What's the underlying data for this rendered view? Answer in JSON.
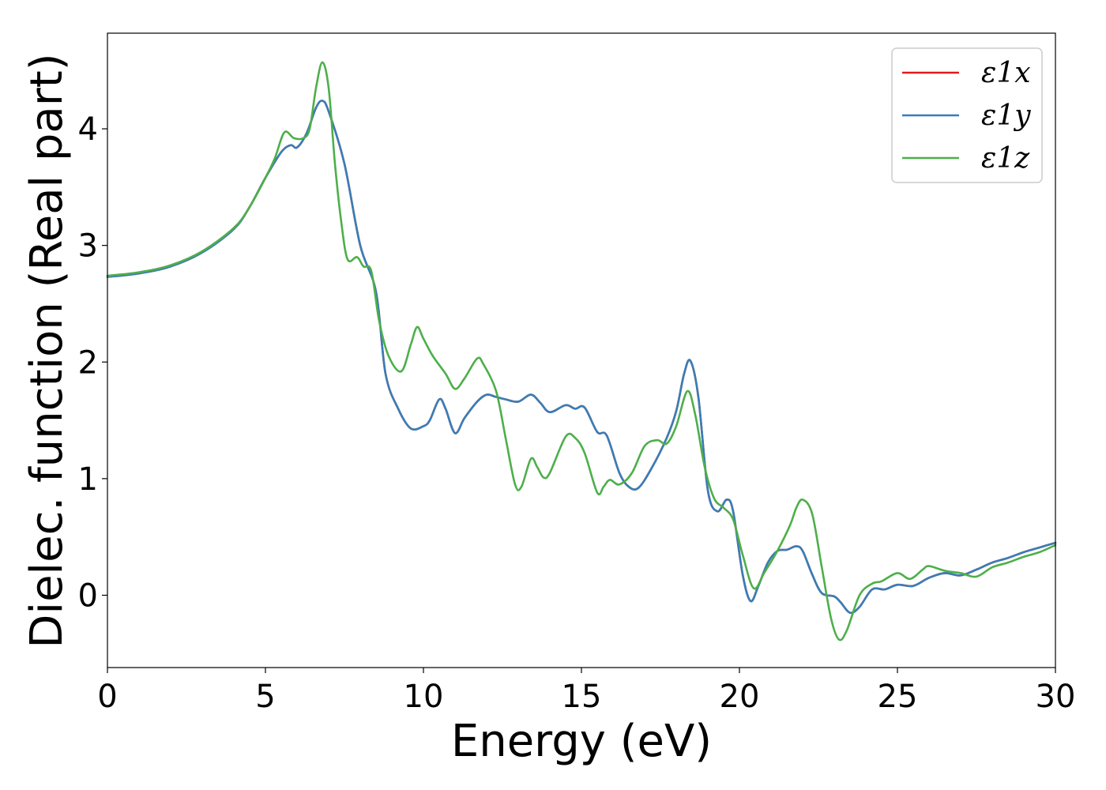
{
  "chart_data": {
    "type": "line",
    "title": "",
    "xlabel": "Energy (eV)",
    "ylabel": "Dielec. function (Real part)",
    "xlim": [
      0,
      30
    ],
    "ylim": [
      -0.62,
      4.82
    ],
    "xticks": [
      0,
      5,
      10,
      15,
      20,
      25,
      30
    ],
    "yticks": [
      0,
      1,
      2,
      3,
      4
    ],
    "grid": false,
    "legend_position": "top-right",
    "series": [
      {
        "name": "ε1x",
        "color": "#e41a1c",
        "points": [
          [
            0,
            2.73
          ],
          [
            1,
            2.76
          ],
          [
            2,
            2.82
          ],
          [
            3,
            2.94
          ],
          [
            4,
            3.14
          ],
          [
            4.5,
            3.33
          ],
          [
            5,
            3.58
          ],
          [
            5.5,
            3.8
          ],
          [
            5.8,
            3.86
          ],
          [
            6.0,
            3.84
          ],
          [
            6.3,
            3.96
          ],
          [
            6.6,
            4.18
          ],
          [
            6.8,
            4.24
          ],
          [
            7.0,
            4.15
          ],
          [
            7.5,
            3.7
          ],
          [
            8.0,
            3.0
          ],
          [
            8.5,
            2.6
          ],
          [
            8.8,
            1.9
          ],
          [
            9.2,
            1.6
          ],
          [
            9.6,
            1.43
          ],
          [
            10.0,
            1.45
          ],
          [
            10.2,
            1.5
          ],
          [
            10.5,
            1.68
          ],
          [
            10.7,
            1.6
          ],
          [
            11.0,
            1.39
          ],
          [
            11.3,
            1.52
          ],
          [
            11.7,
            1.66
          ],
          [
            12.0,
            1.72
          ],
          [
            12.3,
            1.7
          ],
          [
            12.6,
            1.68
          ],
          [
            13.0,
            1.66
          ],
          [
            13.4,
            1.72
          ],
          [
            13.7,
            1.65
          ],
          [
            14.0,
            1.57
          ],
          [
            14.5,
            1.63
          ],
          [
            14.8,
            1.6
          ],
          [
            15.1,
            1.61
          ],
          [
            15.5,
            1.4
          ],
          [
            15.8,
            1.37
          ],
          [
            16.2,
            1.05
          ],
          [
            16.5,
            0.93
          ],
          [
            16.8,
            0.92
          ],
          [
            17.2,
            1.08
          ],
          [
            17.7,
            1.35
          ],
          [
            18.0,
            1.58
          ],
          [
            18.25,
            1.9
          ],
          [
            18.45,
            2.01
          ],
          [
            18.7,
            1.7
          ],
          [
            19.0,
            0.9
          ],
          [
            19.3,
            0.72
          ],
          [
            19.6,
            0.82
          ],
          [
            19.8,
            0.72
          ],
          [
            20.1,
            0.18
          ],
          [
            20.35,
            -0.05
          ],
          [
            20.6,
            0.08
          ],
          [
            20.9,
            0.28
          ],
          [
            21.2,
            0.38
          ],
          [
            21.5,
            0.39
          ],
          [
            21.8,
            0.42
          ],
          [
            22.0,
            0.38
          ],
          [
            22.3,
            0.18
          ],
          [
            22.6,
            0.02
          ],
          [
            23.0,
            -0.01
          ],
          [
            23.2,
            -0.06
          ],
          [
            23.5,
            -0.15
          ],
          [
            23.8,
            -0.1
          ],
          [
            24.2,
            0.05
          ],
          [
            24.6,
            0.05
          ],
          [
            25.0,
            0.09
          ],
          [
            25.5,
            0.08
          ],
          [
            26.0,
            0.15
          ],
          [
            26.5,
            0.19
          ],
          [
            27.0,
            0.17
          ],
          [
            27.5,
            0.22
          ],
          [
            28.0,
            0.28
          ],
          [
            28.5,
            0.32
          ],
          [
            29.0,
            0.37
          ],
          [
            29.5,
            0.41
          ],
          [
            30.0,
            0.45
          ]
        ]
      },
      {
        "name": "ε1y",
        "color": "#377eb8",
        "points": [
          [
            0,
            2.73
          ],
          [
            1,
            2.76
          ],
          [
            2,
            2.82
          ],
          [
            3,
            2.94
          ],
          [
            4,
            3.14
          ],
          [
            4.5,
            3.33
          ],
          [
            5,
            3.58
          ],
          [
            5.5,
            3.8
          ],
          [
            5.8,
            3.86
          ],
          [
            6.0,
            3.84
          ],
          [
            6.3,
            3.96
          ],
          [
            6.6,
            4.18
          ],
          [
            6.8,
            4.24
          ],
          [
            7.0,
            4.15
          ],
          [
            7.5,
            3.7
          ],
          [
            8.0,
            3.0
          ],
          [
            8.5,
            2.6
          ],
          [
            8.8,
            1.9
          ],
          [
            9.2,
            1.6
          ],
          [
            9.6,
            1.43
          ],
          [
            10.0,
            1.45
          ],
          [
            10.2,
            1.5
          ],
          [
            10.5,
            1.68
          ],
          [
            10.7,
            1.6
          ],
          [
            11.0,
            1.39
          ],
          [
            11.3,
            1.52
          ],
          [
            11.7,
            1.66
          ],
          [
            12.0,
            1.72
          ],
          [
            12.3,
            1.7
          ],
          [
            12.6,
            1.68
          ],
          [
            13.0,
            1.66
          ],
          [
            13.4,
            1.72
          ],
          [
            13.7,
            1.65
          ],
          [
            14.0,
            1.57
          ],
          [
            14.5,
            1.63
          ],
          [
            14.8,
            1.6
          ],
          [
            15.1,
            1.61
          ],
          [
            15.5,
            1.4
          ],
          [
            15.8,
            1.37
          ],
          [
            16.2,
            1.05
          ],
          [
            16.5,
            0.93
          ],
          [
            16.8,
            0.92
          ],
          [
            17.2,
            1.08
          ],
          [
            17.7,
            1.35
          ],
          [
            18.0,
            1.58
          ],
          [
            18.25,
            1.9
          ],
          [
            18.45,
            2.01
          ],
          [
            18.7,
            1.7
          ],
          [
            19.0,
            0.9
          ],
          [
            19.3,
            0.72
          ],
          [
            19.6,
            0.82
          ],
          [
            19.8,
            0.72
          ],
          [
            20.1,
            0.18
          ],
          [
            20.35,
            -0.05
          ],
          [
            20.6,
            0.08
          ],
          [
            20.9,
            0.28
          ],
          [
            21.2,
            0.38
          ],
          [
            21.5,
            0.39
          ],
          [
            21.8,
            0.42
          ],
          [
            22.0,
            0.38
          ],
          [
            22.3,
            0.18
          ],
          [
            22.6,
            0.02
          ],
          [
            23.0,
            -0.01
          ],
          [
            23.2,
            -0.06
          ],
          [
            23.5,
            -0.15
          ],
          [
            23.8,
            -0.1
          ],
          [
            24.2,
            0.05
          ],
          [
            24.6,
            0.05
          ],
          [
            25.0,
            0.09
          ],
          [
            25.5,
            0.08
          ],
          [
            26.0,
            0.15
          ],
          [
            26.5,
            0.19
          ],
          [
            27.0,
            0.17
          ],
          [
            27.5,
            0.22
          ],
          [
            28.0,
            0.28
          ],
          [
            28.5,
            0.32
          ],
          [
            29.0,
            0.37
          ],
          [
            29.5,
            0.41
          ],
          [
            30.0,
            0.45
          ]
        ]
      },
      {
        "name": "ε1z",
        "color": "#4daf4a",
        "points": [
          [
            0,
            2.74
          ],
          [
            1,
            2.77
          ],
          [
            2,
            2.83
          ],
          [
            3,
            2.95
          ],
          [
            4,
            3.15
          ],
          [
            4.5,
            3.33
          ],
          [
            5,
            3.58
          ],
          [
            5.3,
            3.75
          ],
          [
            5.6,
            3.97
          ],
          [
            5.9,
            3.92
          ],
          [
            6.2,
            3.92
          ],
          [
            6.4,
            4.0
          ],
          [
            6.6,
            4.35
          ],
          [
            6.8,
            4.57
          ],
          [
            7.0,
            4.35
          ],
          [
            7.2,
            3.7
          ],
          [
            7.4,
            3.2
          ],
          [
            7.6,
            2.88
          ],
          [
            7.9,
            2.9
          ],
          [
            8.1,
            2.82
          ],
          [
            8.35,
            2.78
          ],
          [
            8.6,
            2.35
          ],
          [
            8.9,
            2.05
          ],
          [
            9.3,
            1.92
          ],
          [
            9.6,
            2.15
          ],
          [
            9.8,
            2.3
          ],
          [
            10.0,
            2.2
          ],
          [
            10.3,
            2.05
          ],
          [
            10.7,
            1.9
          ],
          [
            11.0,
            1.77
          ],
          [
            11.3,
            1.86
          ],
          [
            11.7,
            2.03
          ],
          [
            11.9,
            1.98
          ],
          [
            12.3,
            1.75
          ],
          [
            12.6,
            1.35
          ],
          [
            12.9,
            0.95
          ],
          [
            13.1,
            0.93
          ],
          [
            13.4,
            1.17
          ],
          [
            13.6,
            1.1
          ],
          [
            13.8,
            1.01
          ],
          [
            14.0,
            1.05
          ],
          [
            14.5,
            1.36
          ],
          [
            14.8,
            1.35
          ],
          [
            15.1,
            1.22
          ],
          [
            15.5,
            0.88
          ],
          [
            15.7,
            0.93
          ],
          [
            15.9,
            0.99
          ],
          [
            16.2,
            0.95
          ],
          [
            16.6,
            1.05
          ],
          [
            17.0,
            1.28
          ],
          [
            17.4,
            1.33
          ],
          [
            17.7,
            1.3
          ],
          [
            18.0,
            1.45
          ],
          [
            18.35,
            1.75
          ],
          [
            18.6,
            1.55
          ],
          [
            18.9,
            1.1
          ],
          [
            19.2,
            0.83
          ],
          [
            19.5,
            0.75
          ],
          [
            19.8,
            0.65
          ],
          [
            20.1,
            0.35
          ],
          [
            20.45,
            0.06
          ],
          [
            20.8,
            0.2
          ],
          [
            21.2,
            0.38
          ],
          [
            21.6,
            0.6
          ],
          [
            21.8,
            0.75
          ],
          [
            22.0,
            0.82
          ],
          [
            22.3,
            0.7
          ],
          [
            22.6,
            0.25
          ],
          [
            22.9,
            -0.2
          ],
          [
            23.15,
            -0.38
          ],
          [
            23.4,
            -0.3
          ],
          [
            23.8,
            0.0
          ],
          [
            24.2,
            0.1
          ],
          [
            24.5,
            0.12
          ],
          [
            25.0,
            0.19
          ],
          [
            25.4,
            0.14
          ],
          [
            25.8,
            0.22
          ],
          [
            26.0,
            0.25
          ],
          [
            26.5,
            0.21
          ],
          [
            27.0,
            0.19
          ],
          [
            27.5,
            0.16
          ],
          [
            28.0,
            0.24
          ],
          [
            28.5,
            0.28
          ],
          [
            29.0,
            0.33
          ],
          [
            29.5,
            0.37
          ],
          [
            30.0,
            0.43
          ]
        ]
      }
    ]
  }
}
